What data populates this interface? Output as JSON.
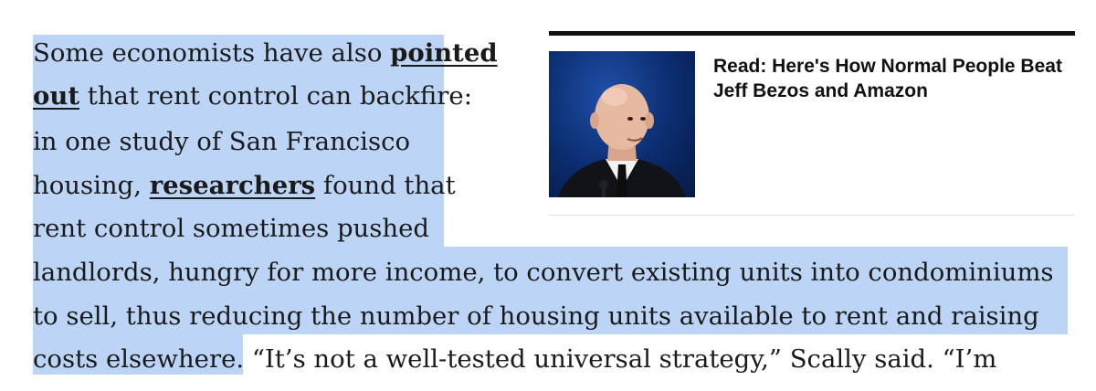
{
  "article": {
    "p1_l1_pre": "Some economists have also ",
    "p1_l1_link": "pointed",
    "p1_l2_link": "out",
    "p1_l2_post": " that rent control can backfire:",
    "p1_l3": "in one study of San Francisco",
    "p1_l4_pre": "housing, ",
    "p1_l4_link": "researchers",
    "p1_l4_post": " found that",
    "p1_l5": "rent control sometimes pushed",
    "p1_l6": "landlords, hungry for more income, to convert existing units into condominiums",
    "p1_l7": "to sell, thus reducing the number of housing units available to rent and raising",
    "p1_l8_hl": "costs elsewhere.",
    "p1_l8_rest": " “It’s not a well-tested universal strategy,” Scally said. “I’m"
  },
  "promo": {
    "title": "Read: Here's How Normal People Beat Jeff Bezos and Amazon",
    "image_alt": "Jeff Bezos"
  },
  "colors": {
    "selection_highlight": "#bcd5f7",
    "promo_rule": "#111111",
    "text": "#1a1a1a"
  }
}
